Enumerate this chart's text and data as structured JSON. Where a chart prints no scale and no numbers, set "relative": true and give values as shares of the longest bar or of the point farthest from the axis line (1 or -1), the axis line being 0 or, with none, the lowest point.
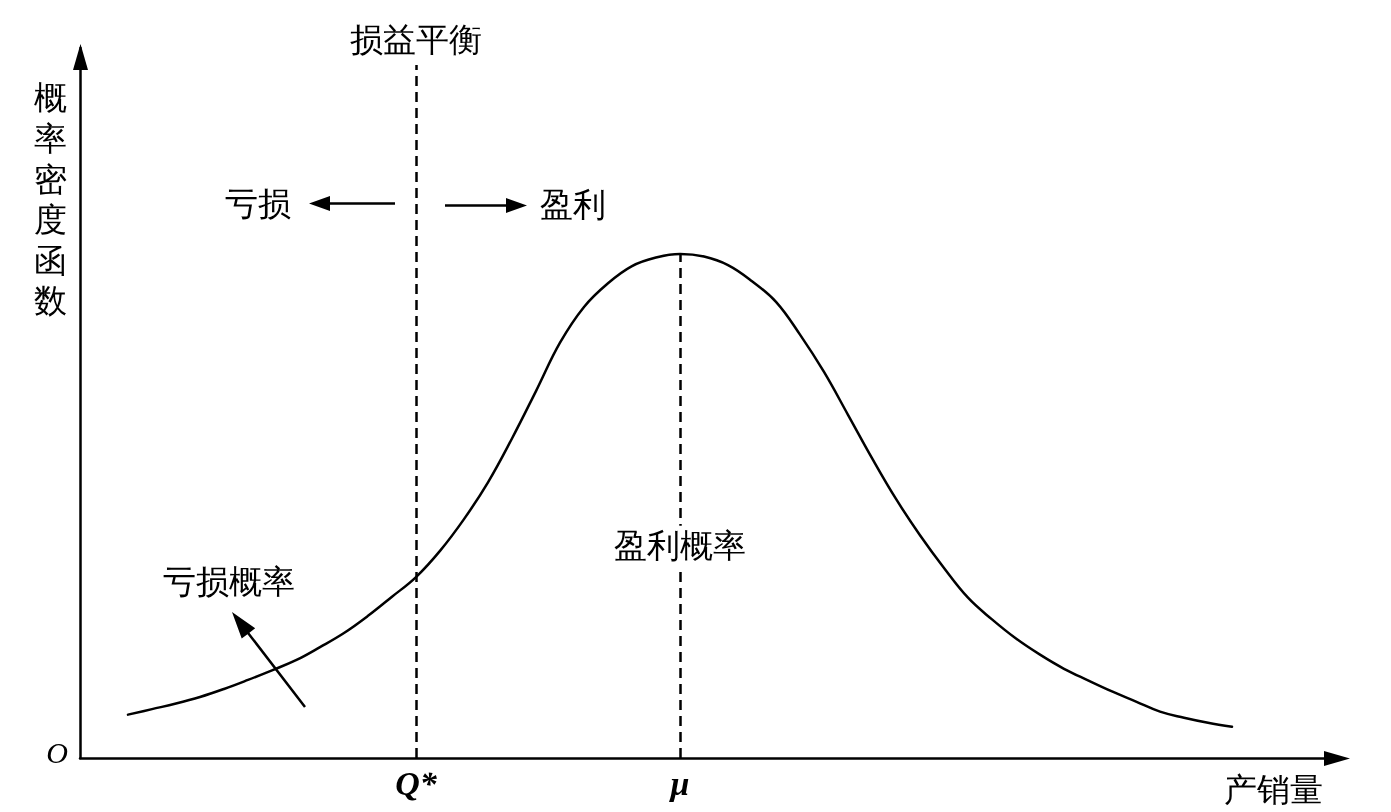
{
  "chart_data": {
    "type": "line",
    "relative": true,
    "xlabel": "产销量",
    "ylabel": "概率密度函数",
    "tick_labels": "x",
    "categories": [
      null,
      null,
      null,
      null,
      null,
      null,
      null,
      null,
      null,
      null,
      null,
      null,
      null,
      null,
      "Q*",
      null,
      null,
      null,
      null,
      null,
      null,
      null,
      null,
      null,
      null,
      "μ",
      null,
      null,
      null,
      null,
      null,
      null,
      null,
      null,
      null,
      null,
      null,
      null,
      null,
      null,
      null,
      null,
      null,
      null,
      null,
      null,
      null,
      null,
      null,
      null,
      null,
      null,
      null
    ],
    "series": [
      {
        "color": "#000000",
        "values": [
          null,
          null,
          0.086,
          0.097,
          0.108,
          0.121,
          0.137,
          0.155,
          0.174,
          0.194,
          0.22,
          0.248,
          0.282,
          0.32,
          0.359,
          0.411,
          0.474,
          0.547,
          0.634,
          0.728,
          0.824,
          0.895,
          0.942,
          0.976,
          0.993,
          1,
          0.995,
          0.978,
          0.946,
          0.905,
          0.84,
          0.766,
          0.681,
          0.595,
          0.514,
          0.442,
          0.377,
          0.318,
          0.275,
          0.237,
          0.205,
          0.177,
          0.154,
          0.132,
          0.112,
          0.092,
          0.08,
          0.07,
          0.062,
          null,
          null,
          null,
          null
        ]
      }
    ],
    "ref_lines": [
      {
        "axis": "x",
        "value": "Q*",
        "label": "损益平衡",
        "line_style": "dashed",
        "color": "#000000"
      },
      {
        "axis": "x",
        "value": "μ",
        "line_style": "dashed",
        "color": "#000000"
      }
    ],
    "annotations": [
      "O",
      "亏损",
      "盈利",
      "亏损概率",
      {
        "text": "盈利概率",
        "x": "μ",
        "y": 0.42
      }
    ]
  }
}
